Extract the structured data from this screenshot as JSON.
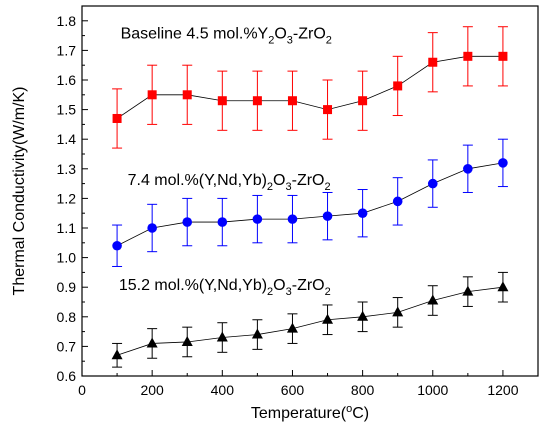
{
  "chart_data": {
    "type": "line",
    "xlabel": {
      "main": "Temperature(",
      "sup": "o",
      "tail": "C)"
    },
    "ylabel": "Thermal Conductivity(W/m/K)",
    "xlim": [
      0,
      1300
    ],
    "ylim": [
      0.6,
      1.85
    ],
    "xticks": [
      0,
      200,
      400,
      600,
      800,
      1000,
      1200
    ],
    "yticks": [
      0.6,
      0.7,
      0.8,
      0.9,
      1.0,
      1.1,
      1.2,
      1.3,
      1.4,
      1.5,
      1.6,
      1.7,
      1.8
    ],
    "grid": false,
    "x": [
      100,
      200,
      300,
      400,
      500,
      600,
      700,
      800,
      900,
      1000,
      1100,
      1200
    ],
    "series": [
      {
        "name": "Baseline 4.5 mol.%Y2O3-ZrO2",
        "label_parts": [
          [
            "Baseline 4.5 mol.%Y",
            ""
          ],
          [
            "2",
            "sub"
          ],
          [
            "O",
            ""
          ],
          [
            "3",
            "sub"
          ],
          [
            "-ZrO",
            ""
          ],
          [
            "2",
            "sub"
          ]
        ],
        "label_pos": [
          110,
          1.74
        ],
        "marker": "square",
        "color": "#ff0000",
        "values": [
          1.47,
          1.55,
          1.55,
          1.53,
          1.53,
          1.53,
          1.5,
          1.53,
          1.58,
          1.66,
          1.68,
          1.68
        ],
        "errors": [
          0.1,
          0.1,
          0.1,
          0.1,
          0.1,
          0.1,
          0.1,
          0.1,
          0.1,
          0.1,
          0.1,
          0.1
        ]
      },
      {
        "name": "7.4 mol.%(Y,Nd,Yb)2O3-ZrO2",
        "label_parts": [
          [
            "7.4 mol.%(Y,Nd,Yb)",
            ""
          ],
          [
            "2",
            "sub"
          ],
          [
            "O",
            ""
          ],
          [
            "3",
            "sub"
          ],
          [
            "-ZrO",
            ""
          ],
          [
            "2",
            "sub"
          ]
        ],
        "label_pos": [
          130,
          1.245
        ],
        "marker": "circle",
        "color": "#0000ff",
        "values": [
          1.04,
          1.1,
          1.12,
          1.12,
          1.13,
          1.13,
          1.14,
          1.15,
          1.19,
          1.25,
          1.3,
          1.32
        ],
        "errors": [
          0.07,
          0.08,
          0.08,
          0.08,
          0.08,
          0.08,
          0.08,
          0.08,
          0.08,
          0.08,
          0.08,
          0.08
        ]
      },
      {
        "name": "15.2 mol.%(Y,Nd,Yb)2O3-ZrO2",
        "label_parts": [
          [
            "15.2 mol.%(Y,Nd,Yb)",
            ""
          ],
          [
            "2",
            "sub"
          ],
          [
            "O",
            ""
          ],
          [
            "3",
            "sub"
          ],
          [
            "-ZrO",
            ""
          ],
          [
            "2",
            "sub"
          ]
        ],
        "label_pos": [
          105,
          0.89
        ],
        "marker": "triangle",
        "color": "#000000",
        "values": [
          0.67,
          0.71,
          0.715,
          0.73,
          0.74,
          0.76,
          0.79,
          0.8,
          0.815,
          0.855,
          0.885,
          0.9
        ],
        "errors": [
          0.04,
          0.05,
          0.05,
          0.05,
          0.05,
          0.05,
          0.05,
          0.05,
          0.05,
          0.05,
          0.05,
          0.05
        ]
      }
    ]
  }
}
